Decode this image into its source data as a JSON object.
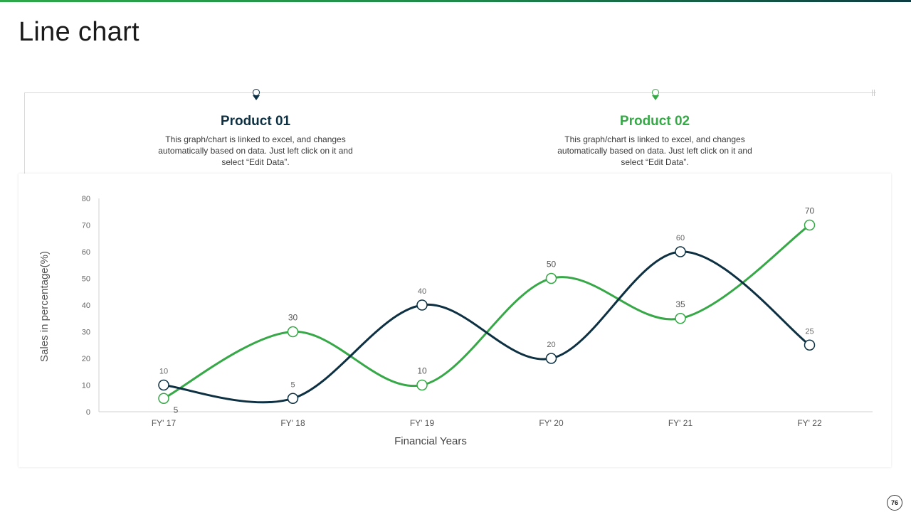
{
  "slide": {
    "title": "Line chart",
    "page_number": "76"
  },
  "colors": {
    "product_01": "#0d3042",
    "product_02": "#37a847",
    "accent_gradient": [
      "#2ea84a",
      "#0d3b42"
    ]
  },
  "products": [
    {
      "title": "Product 01",
      "description": "This graph/chart is linked to excel, and changes automatically based on data. Just left click on it and select “Edit Data”.",
      "icon": "location-pin-icon"
    },
    {
      "title": "Product 02",
      "description": "This graph/chart is linked to excel, and changes automatically based on data. Just left click on it and select “Edit Data”.",
      "icon": "location-pin-icon"
    }
  ],
  "chart_data": {
    "type": "line",
    "categories": [
      "FY' 17",
      "FY' 18",
      "FY' 19",
      "FY' 20",
      "FY' 21",
      "FY' 22"
    ],
    "series": [
      {
        "values": [
          10,
          5,
          40,
          20,
          60,
          25
        ],
        "color": "#0d3042"
      },
      {
        "values": [
          5,
          30,
          10,
          50,
          35,
          70
        ],
        "color": "#37a847"
      }
    ],
    "xlabel": "Financial Years",
    "ylabel": "Sales in percentage(%)",
    "ylim": [
      0,
      80
    ],
    "yticks": [
      0,
      10,
      20,
      30,
      40,
      50,
      60,
      70,
      80
    ],
    "grid": false,
    "smooth": true,
    "data_labels": true
  }
}
